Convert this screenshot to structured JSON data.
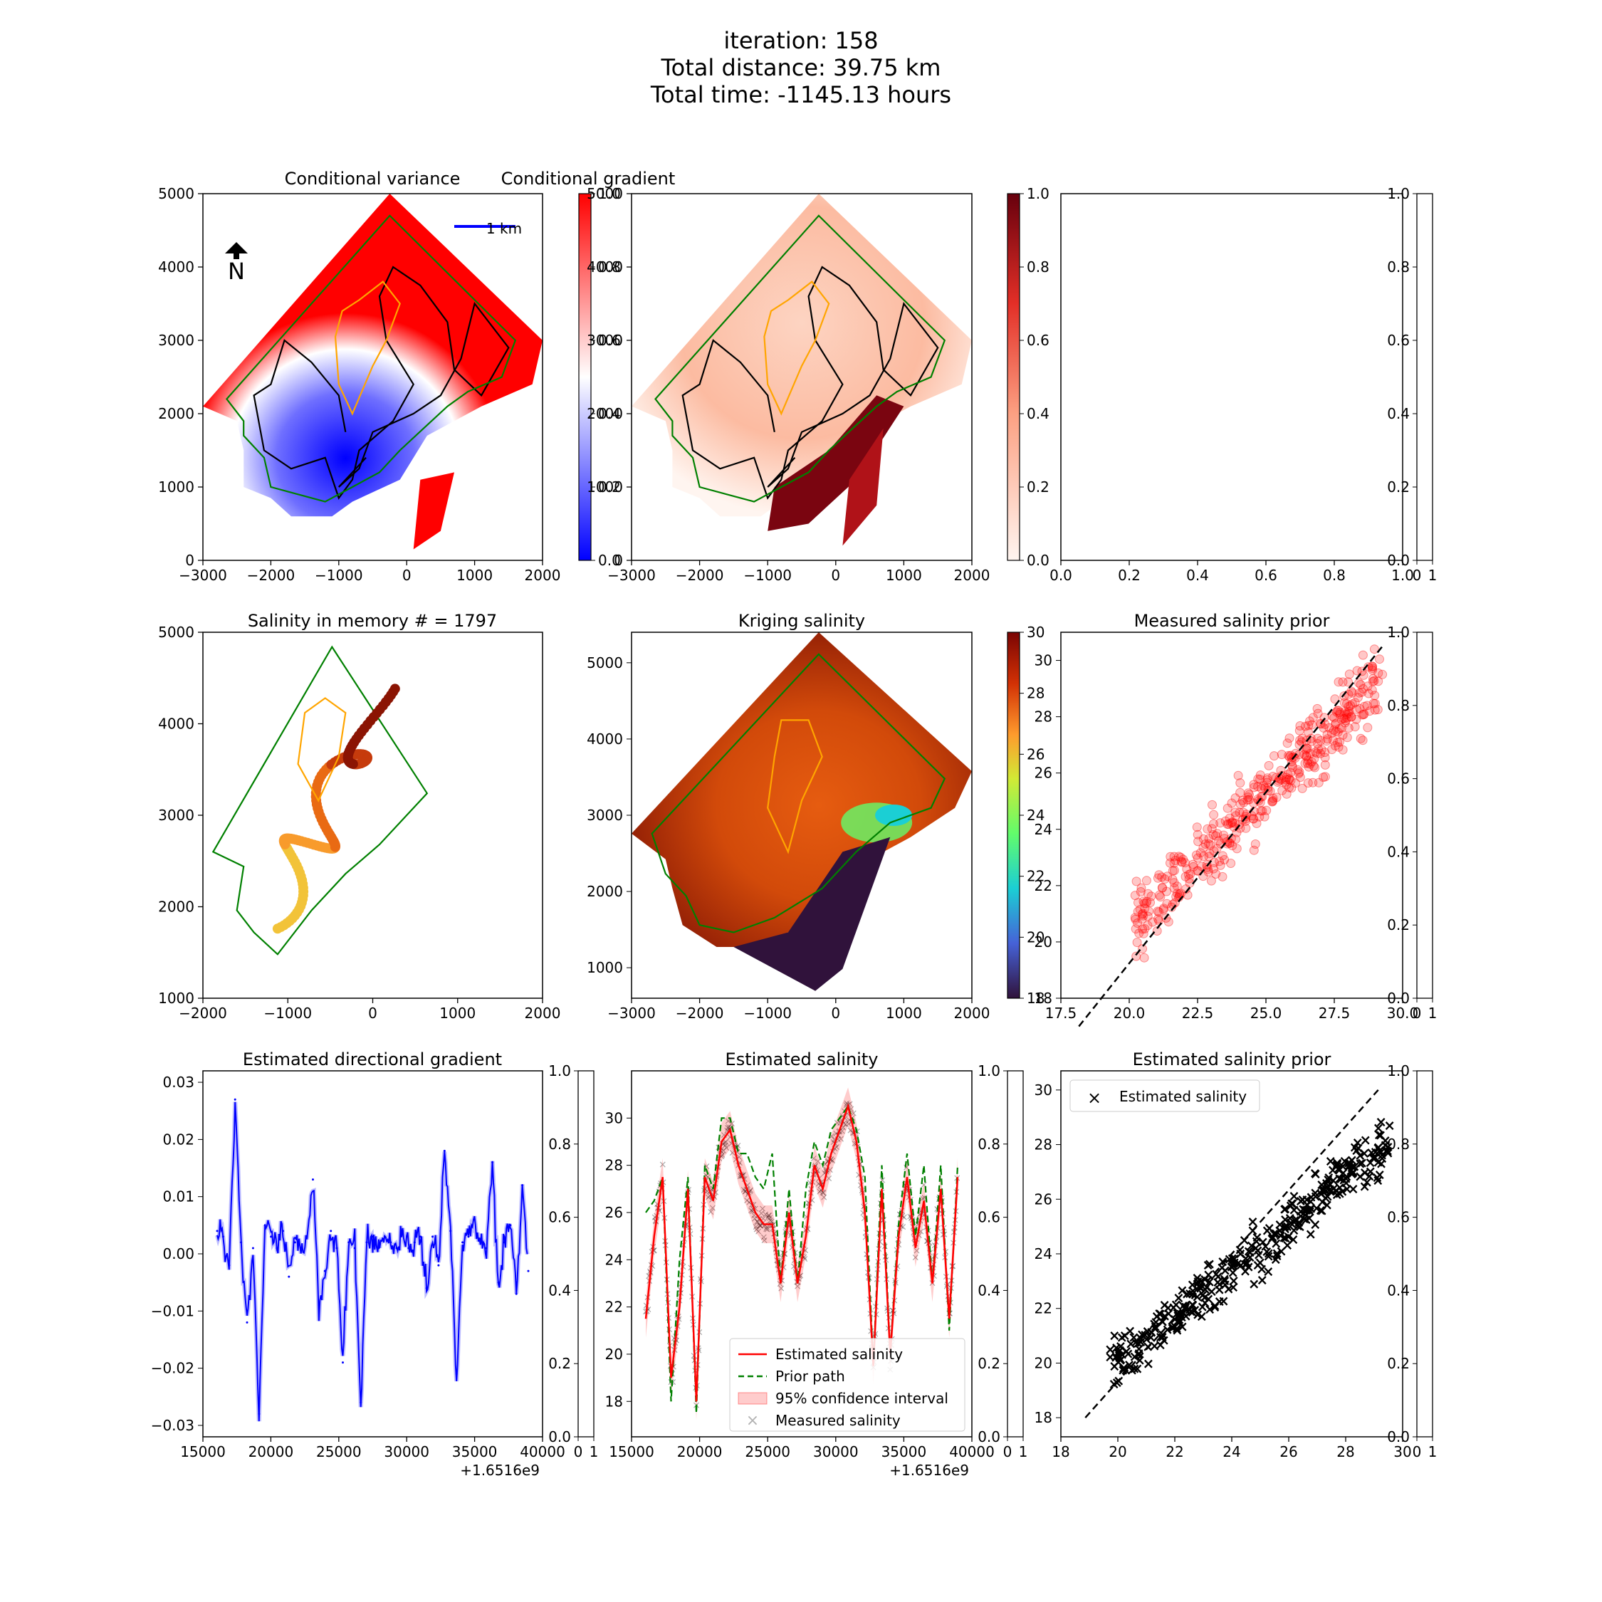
{
  "figure": {
    "title_lines": [
      "iteration: 158",
      "Total distance: 39.75 km",
      "Total time: -1145.13 hours"
    ]
  },
  "colors": {
    "variance_high": "#ff0000",
    "variance_low": "#0000ff",
    "path": "#000000",
    "boundary": "#008000",
    "contour": "#ffa500",
    "scatter": "#ff0000",
    "gradient_line": "#0000ff",
    "estimated_line": "#ff0000",
    "prior_path": "#008000",
    "measured": "#000000"
  },
  "chart_data": [
    {
      "id": "cond-variance",
      "type": "heatmap",
      "title": "Conditional variance",
      "xlim": [
        -3000,
        2400
      ],
      "ylim": [
        0,
        5500
      ],
      "xticks": [
        "−3000",
        "−2000",
        "−1000",
        "0",
        "1000",
        "2000"
      ],
      "yticks": [
        "0",
        "1000",
        "2000",
        "3000",
        "4000",
        "5000"
      ],
      "annotations": [
        "N",
        "1 km"
      ],
      "colorbar": {
        "range": [
          0,
          1
        ],
        "ticks": [
          "0.0",
          "0.2",
          "0.4",
          "0.6",
          "0.8",
          "1.0"
        ],
        "colormap": "bwr"
      }
    },
    {
      "id": "cond-gradient",
      "type": "heatmap",
      "title": "Conditional gradient",
      "xlim": [
        -3000,
        2400
      ],
      "ylim": [
        0,
        5500
      ],
      "xticks": [
        "−3000",
        "−2000",
        "−1000",
        "0",
        "1000",
        "2000"
      ],
      "yticks": [
        "0",
        "1000",
        "2000",
        "3000",
        "4000",
        "5000"
      ],
      "colorbar": {
        "colormap": "Reds",
        "ticks": [
          "0.0",
          "0.2",
          "0.4",
          "0.6",
          "0.8",
          "1.0"
        ]
      }
    },
    {
      "id": "empty-panel",
      "type": "scatter",
      "xlim": [
        0,
        1
      ],
      "ylim": [
        0,
        1
      ],
      "xticks": [
        "0.0",
        "0.2",
        "0.4",
        "0.6",
        "0.8",
        "1.0"
      ],
      "yticks": [
        "0.0",
        "0.2",
        "0.4",
        "0.6",
        "0.8",
        "1.0"
      ]
    },
    {
      "id": "salinity-memory",
      "type": "scatter",
      "title": "Salinity in memory # = 1797",
      "xlim": [
        -2800,
        2100
      ],
      "ylim": [
        600,
        5400
      ],
      "xticks": [
        "−2000",
        "−1000",
        "0",
        "1000",
        "2000"
      ],
      "yticks": [
        "1000",
        "2000",
        "3000",
        "4000",
        "5000"
      ]
    },
    {
      "id": "kriging-salinity",
      "type": "heatmap",
      "title": "Kriging salinity",
      "xlim": [
        -3000,
        2400
      ],
      "ylim": [
        600,
        5400
      ],
      "xticks": [
        "−3000",
        "−2000",
        "−1000",
        "0",
        "1000",
        "2000"
      ],
      "yticks": [
        "1000",
        "2000",
        "3000",
        "4000",
        "5000"
      ],
      "colorbar": {
        "range": [
          18,
          30
        ],
        "ticks": [
          "18",
          "20",
          "22",
          "24",
          "26",
          "28",
          "30"
        ],
        "colormap": "turbo"
      }
    },
    {
      "id": "measured-prior",
      "type": "scatter",
      "title": "Measured salinity prior",
      "xlim": [
        16.2,
        31.4
      ],
      "ylim": [
        18,
        31
      ],
      "xticks": [
        "17.5",
        "20.0",
        "22.5",
        "25.0",
        "27.5",
        "30.0"
      ],
      "yticks": [
        "18",
        "20",
        "22",
        "24",
        "26",
        "28",
        "30"
      ],
      "reference_line": [
        [
          17,
          17
        ],
        [
          30.5,
          30.5
        ]
      ]
    },
    {
      "id": "est-gradient",
      "type": "line",
      "title": "Estimated directional gradient",
      "xlim": [
        1651614000,
        1651641200
      ],
      "ylim": [
        -0.032,
        0.032
      ],
      "xticks": [
        "15000",
        "20000",
        "25000",
        "30000",
        "35000",
        "40000"
      ],
      "xoffset_label": "+1.6516e9",
      "yticks": [
        "−0.03",
        "−0.02",
        "−0.01",
        "0.00",
        "0.01",
        "0.02",
        "0.03"
      ],
      "series": [
        {
          "values": [
            0.004,
            0.003,
            -0.002,
            0.027,
            0.002,
            -0.012,
            0.001,
            -0.028,
            0.005,
            0.003,
            0.001,
            0.004,
            -0.004,
            0.002,
            0.001,
            0.003,
            0.013,
            -0.009,
            -0.003,
            0.004,
            0.001,
            -0.019,
            0.002,
            0.001,
            -0.026,
            0.002,
            0.003,
            0.001,
            0.003,
            0.002,
            0.001,
            0.004,
            0.001,
            0.002,
            0.003,
            -0.006,
            0.003,
            -0.002,
            0.018,
            0.004,
            -0.021,
            0.002,
            0.003,
            0.006,
            0.002,
            0.001,
            0.016,
            -0.005,
            0.002,
            0.005,
            -0.007,
            0.012,
            -0.003
          ]
        }
      ]
    },
    {
      "id": "est-salinity",
      "type": "line",
      "title": "Estimated salinity",
      "xlim": [
        1651614000,
        1651641200
      ],
      "ylim": [
        16.5,
        32
      ],
      "xticks": [
        "15000",
        "20000",
        "25000",
        "30000",
        "35000",
        "40000"
      ],
      "xoffset_label": "+1.6516e9",
      "yticks": [
        "18",
        "20",
        "22",
        "24",
        "26",
        "28",
        "30"
      ],
      "legend": [
        "Estimated salinity",
        "Prior path",
        "95% confidence interval",
        "Measured salinity"
      ],
      "legend_position": "lower-right",
      "series": [
        {
          "name": "Estimated salinity",
          "values": [
            21.5,
            25.0,
            27.5,
            19.0,
            22.0,
            27.0,
            18.0,
            27.5,
            26.5,
            29.0,
            29.5,
            28.0,
            27.0,
            26.0,
            25.5,
            25.5,
            23.0,
            26.0,
            23.0,
            25.0,
            28.0,
            27.0,
            28.5,
            29.5,
            30.5,
            29.0,
            26.0,
            19.5,
            27.0,
            20.0,
            25.0,
            27.5,
            24.5,
            26.5,
            23.0,
            27.0,
            21.5,
            27.5
          ]
        },
        {
          "name": "Prior path",
          "values": [
            26.0,
            26.5,
            27.5,
            18.0,
            24.0,
            27.5,
            17.5,
            28.0,
            27.0,
            30.0,
            30.0,
            28.5,
            28.5,
            27.5,
            27.0,
            28.5,
            23.0,
            27.0,
            23.0,
            27.0,
            29.0,
            28.0,
            29.5,
            30.0,
            30.5,
            29.5,
            27.5,
            19.5,
            28.0,
            20.0,
            25.5,
            28.5,
            25.0,
            28.0,
            23.0,
            28.0,
            21.0,
            28.0
          ]
        }
      ]
    },
    {
      "id": "est-prior",
      "type": "scatter",
      "title": "Estimated salinity prior",
      "xlim": [
        17,
        31
      ],
      "ylim": [
        17.3,
        30.7
      ],
      "xticks": [
        "18",
        "20",
        "22",
        "24",
        "26",
        "28",
        "30"
      ],
      "yticks": [
        "18",
        "20",
        "22",
        "24",
        "26",
        "28",
        "30"
      ],
      "legend": [
        "Estimated salinity"
      ],
      "legend_position": "top-left",
      "reference_line": [
        [
          18,
          18
        ],
        [
          30,
          30
        ]
      ]
    }
  ],
  "aux_axes": {
    "yticks": [
      "0.0",
      "0.2",
      "0.4",
      "0.6",
      "0.8",
      "1.0"
    ],
    "xticks": [
      "0",
      "1"
    ]
  }
}
